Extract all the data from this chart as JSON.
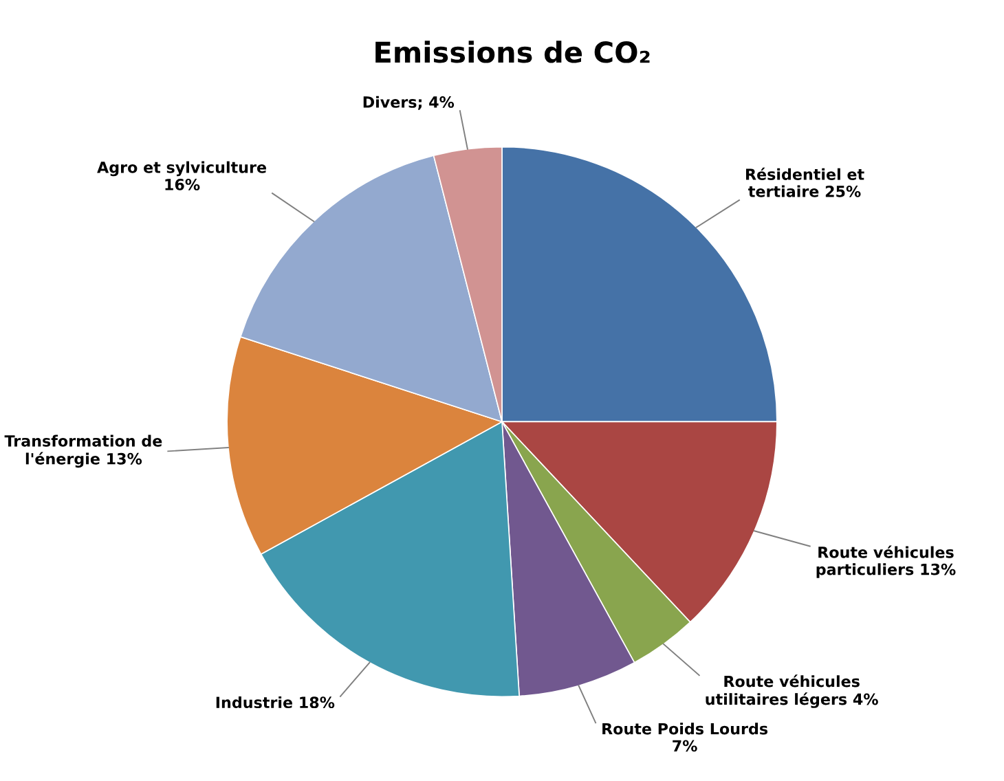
{
  "chart_data": {
    "type": "pie",
    "title": "Emissions de CO₂",
    "categories": [
      "Résidentiel et\ntertiaire",
      "Route véhicules\nparticuliers",
      "Route véhicules\nutilitaires légers",
      "Route Poids Lourds",
      "Industrie",
      "Transformation de\nl'énergie",
      "Agro et sylviculture",
      "Divers"
    ],
    "value_labels": [
      "25%",
      "13%",
      "4%",
      "7%",
      "18%",
      "13%",
      "16%",
      "4%"
    ],
    "values": [
      25,
      13,
      4,
      7,
      18,
      13,
      16,
      4
    ],
    "colors": [
      "#4572a7",
      "#aa4643",
      "#89a54e",
      "#71588f",
      "#4198af",
      "#db843d",
      "#93a9cf",
      "#d19392"
    ],
    "legend": false
  }
}
